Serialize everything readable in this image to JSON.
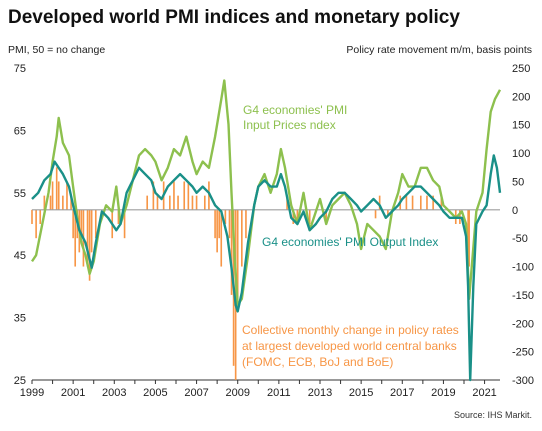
{
  "chart_data": {
    "type": "line",
    "title": "Developed world PMI indices and monetary policy",
    "ylabel_left": "PMI, 50 = no change",
    "ylabel_right": "Policy rate movement m/m, basis points",
    "source": "Source: IHS Markit.",
    "ylim_left": [
      25,
      75
    ],
    "ylim_right": [
      -300,
      250
    ],
    "yticks_left": [
      "75",
      "65",
      "55",
      "45",
      "35",
      "25"
    ],
    "yticks_right": [
      "250",
      "200",
      "150",
      "100",
      "50",
      "0",
      "-50",
      "-100",
      "-150",
      "-200",
      "-250",
      "-300"
    ],
    "xticks": [
      "1999",
      "2001",
      "2003",
      "2005",
      "2007",
      "2009",
      "2011",
      "2013",
      "2015",
      "2017",
      "2019",
      "2021"
    ],
    "x_range": [
      1999.0,
      2021.75
    ],
    "grid": false,
    "colors": {
      "input_prices": "#8dc04e",
      "output": "#1a9088",
      "policy": "#f79646",
      "zero_line": "#9e9e9e"
    },
    "annotations": {
      "input_prices": [
        "G4 economies' PMI",
        "Input  Prices ndex"
      ],
      "output": [
        "G4 economies' PMI Output  Index"
      ],
      "policy": [
        "Collective monthly change in policy rates",
        "at largest developed world central banks",
        "(FOMC, ECB, BoJ and BoE)"
      ]
    },
    "series": [
      {
        "name": "G4 economies' PMI Input  Prices ndex",
        "axis": "left",
        "points": [
          [
            1999.0,
            44
          ],
          [
            1999.2,
            45
          ],
          [
            1999.5,
            50
          ],
          [
            1999.8,
            55
          ],
          [
            2000.0,
            60
          ],
          [
            2000.2,
            64
          ],
          [
            2000.3,
            67
          ],
          [
            2000.5,
            63
          ],
          [
            2000.8,
            61
          ],
          [
            2001.0,
            56
          ],
          [
            2001.2,
            51
          ],
          [
            2001.4,
            47
          ],
          [
            2001.6,
            45
          ],
          [
            2001.8,
            42
          ],
          [
            2002.0,
            44
          ],
          [
            2002.3,
            50
          ],
          [
            2002.6,
            53
          ],
          [
            2002.9,
            52
          ],
          [
            2003.1,
            56
          ],
          [
            2003.3,
            50
          ],
          [
            2003.6,
            53
          ],
          [
            2003.9,
            57
          ],
          [
            2004.2,
            61
          ],
          [
            2004.5,
            62
          ],
          [
            2004.8,
            61
          ],
          [
            2005.0,
            60
          ],
          [
            2005.3,
            57
          ],
          [
            2005.6,
            59
          ],
          [
            2005.9,
            62
          ],
          [
            2006.2,
            61
          ],
          [
            2006.5,
            64
          ],
          [
            2006.8,
            60
          ],
          [
            2007.0,
            58
          ],
          [
            2007.3,
            60
          ],
          [
            2007.6,
            59
          ],
          [
            2007.9,
            64
          ],
          [
            2008.2,
            70
          ],
          [
            2008.35,
            73
          ],
          [
            2008.55,
            66
          ],
          [
            2008.7,
            55
          ],
          [
            2008.85,
            45
          ],
          [
            2009.0,
            37
          ],
          [
            2009.2,
            38
          ],
          [
            2009.5,
            45
          ],
          [
            2009.8,
            53
          ],
          [
            2010.0,
            56
          ],
          [
            2010.3,
            58
          ],
          [
            2010.6,
            55
          ],
          [
            2010.9,
            58
          ],
          [
            2011.1,
            62
          ],
          [
            2011.3,
            59
          ],
          [
            2011.6,
            53
          ],
          [
            2011.9,
            50
          ],
          [
            2012.2,
            55
          ],
          [
            2012.5,
            49
          ],
          [
            2012.8,
            52
          ],
          [
            2013.0,
            54
          ],
          [
            2013.3,
            50
          ],
          [
            2013.6,
            53
          ],
          [
            2013.9,
            54
          ],
          [
            2014.2,
            55
          ],
          [
            2014.5,
            53
          ],
          [
            2014.8,
            50
          ],
          [
            2015.0,
            46
          ],
          [
            2015.3,
            50
          ],
          [
            2015.6,
            49
          ],
          [
            2015.9,
            48
          ],
          [
            2016.2,
            46
          ],
          [
            2016.5,
            52
          ],
          [
            2016.8,
            55
          ],
          [
            2017.0,
            58
          ],
          [
            2017.3,
            56
          ],
          [
            2017.6,
            56
          ],
          [
            2017.9,
            59
          ],
          [
            2018.2,
            59
          ],
          [
            2018.5,
            57
          ],
          [
            2018.8,
            56
          ],
          [
            2019.0,
            53
          ],
          [
            2019.3,
            52
          ],
          [
            2019.6,
            51
          ],
          [
            2019.9,
            52
          ],
          [
            2020.1,
            50
          ],
          [
            2020.25,
            38
          ],
          [
            2020.4,
            44
          ],
          [
            2020.6,
            52
          ],
          [
            2020.9,
            55
          ],
          [
            2021.1,
            62
          ],
          [
            2021.3,
            68
          ],
          [
            2021.5,
            70
          ],
          [
            2021.75,
            71.5
          ]
        ]
      },
      {
        "name": "G4 economies' PMI Output  Index",
        "axis": "left",
        "points": [
          [
            1999.0,
            54
          ],
          [
            1999.3,
            55
          ],
          [
            1999.6,
            57
          ],
          [
            1999.9,
            58
          ],
          [
            2000.1,
            60
          ],
          [
            2000.3,
            59
          ],
          [
            2000.5,
            58
          ],
          [
            2000.8,
            56
          ],
          [
            2001.0,
            53
          ],
          [
            2001.3,
            49
          ],
          [
            2001.6,
            47
          ],
          [
            2001.9,
            43
          ],
          [
            2002.1,
            47
          ],
          [
            2002.4,
            52
          ],
          [
            2002.7,
            51
          ],
          [
            2002.9,
            50
          ],
          [
            2003.1,
            49
          ],
          [
            2003.3,
            50
          ],
          [
            2003.6,
            55
          ],
          [
            2003.9,
            57
          ],
          [
            2004.2,
            59
          ],
          [
            2004.5,
            58
          ],
          [
            2004.8,
            57
          ],
          [
            2005.0,
            55
          ],
          [
            2005.3,
            54
          ],
          [
            2005.6,
            56
          ],
          [
            2005.9,
            57
          ],
          [
            2006.2,
            58
          ],
          [
            2006.5,
            57
          ],
          [
            2006.8,
            56
          ],
          [
            2007.0,
            55
          ],
          [
            2007.3,
            56
          ],
          [
            2007.6,
            55
          ],
          [
            2007.9,
            53
          ],
          [
            2008.2,
            52
          ],
          [
            2008.5,
            48
          ],
          [
            2008.7,
            43
          ],
          [
            2008.9,
            37
          ],
          [
            2009.0,
            36
          ],
          [
            2009.2,
            39
          ],
          [
            2009.5,
            47
          ],
          [
            2009.8,
            53
          ],
          [
            2010.0,
            56
          ],
          [
            2010.3,
            57
          ],
          [
            2010.6,
            56
          ],
          [
            2010.9,
            56
          ],
          [
            2011.1,
            58
          ],
          [
            2011.3,
            56
          ],
          [
            2011.6,
            51
          ],
          [
            2011.9,
            50
          ],
          [
            2012.2,
            52
          ],
          [
            2012.5,
            49
          ],
          [
            2012.8,
            50
          ],
          [
            2013.0,
            51
          ],
          [
            2013.3,
            52
          ],
          [
            2013.6,
            54
          ],
          [
            2013.9,
            55
          ],
          [
            2014.2,
            55
          ],
          [
            2014.5,
            54
          ],
          [
            2014.8,
            53
          ],
          [
            2015.0,
            52
          ],
          [
            2015.3,
            53
          ],
          [
            2015.6,
            54
          ],
          [
            2015.9,
            53
          ],
          [
            2016.2,
            51
          ],
          [
            2016.5,
            52
          ],
          [
            2016.8,
            53
          ],
          [
            2017.0,
            54
          ],
          [
            2017.3,
            55
          ],
          [
            2017.6,
            56
          ],
          [
            2017.9,
            56
          ],
          [
            2018.2,
            55
          ],
          [
            2018.5,
            54
          ],
          [
            2018.8,
            53
          ],
          [
            2019.0,
            52
          ],
          [
            2019.3,
            51
          ],
          [
            2019.6,
            51
          ],
          [
            2019.9,
            51
          ],
          [
            2020.1,
            48
          ],
          [
            2020.2,
            40
          ],
          [
            2020.3,
            25
          ],
          [
            2020.45,
            40
          ],
          [
            2020.6,
            50
          ],
          [
            2020.9,
            52
          ],
          [
            2021.1,
            53
          ],
          [
            2021.3,
            58
          ],
          [
            2021.45,
            61
          ],
          [
            2021.6,
            59
          ],
          [
            2021.75,
            55
          ]
        ]
      },
      {
        "name": "Collective monthly change in policy rates",
        "axis": "right",
        "type": "bar",
        "points": [
          [
            1999.0,
            -25
          ],
          [
            1999.2,
            -50
          ],
          [
            1999.4,
            -25
          ],
          [
            1999.6,
            25
          ],
          [
            1999.9,
            25
          ],
          [
            2000.0,
            50
          ],
          [
            2000.2,
            75
          ],
          [
            2000.3,
            50
          ],
          [
            2000.5,
            25
          ],
          [
            2000.7,
            50
          ],
          [
            2000.9,
            25
          ],
          [
            2001.0,
            -50
          ],
          [
            2001.1,
            -100
          ],
          [
            2001.2,
            -50
          ],
          [
            2001.3,
            -75
          ],
          [
            2001.4,
            -50
          ],
          [
            2001.5,
            -100
          ],
          [
            2001.7,
            -100
          ],
          [
            2001.8,
            -125
          ],
          [
            2001.9,
            -75
          ],
          [
            2002.1,
            -50
          ],
          [
            2002.9,
            -50
          ],
          [
            2003.2,
            -25
          ],
          [
            2003.5,
            -50
          ],
          [
            2004.6,
            25
          ],
          [
            2004.9,
            50
          ],
          [
            2005.1,
            25
          ],
          [
            2005.4,
            50
          ],
          [
            2005.7,
            25
          ],
          [
            2005.9,
            50
          ],
          [
            2006.1,
            25
          ],
          [
            2006.4,
            50
          ],
          [
            2006.6,
            50
          ],
          [
            2006.8,
            25
          ],
          [
            2007.0,
            25
          ],
          [
            2007.4,
            25
          ],
          [
            2007.6,
            50
          ],
          [
            2007.9,
            -50
          ],
          [
            2008.0,
            -75
          ],
          [
            2008.1,
            -50
          ],
          [
            2008.2,
            -100
          ],
          [
            2008.4,
            -25
          ],
          [
            2008.6,
            -50
          ],
          [
            2008.7,
            -150
          ],
          [
            2008.8,
            -275
          ],
          [
            2008.9,
            -300
          ],
          [
            2009.0,
            -175
          ],
          [
            2009.2,
            -100
          ],
          [
            2009.4,
            -50
          ],
          [
            2011.4,
            25
          ],
          [
            2011.7,
            -25
          ],
          [
            2011.9,
            -25
          ],
          [
            2012.5,
            -25
          ],
          [
            2013.3,
            -25
          ],
          [
            2015.7,
            -15
          ],
          [
            2015.9,
            25
          ],
          [
            2016.3,
            -10
          ],
          [
            2016.9,
            25
          ],
          [
            2017.2,
            25
          ],
          [
            2017.5,
            25
          ],
          [
            2017.9,
            25
          ],
          [
            2018.2,
            25
          ],
          [
            2018.5,
            25
          ],
          [
            2018.9,
            25
          ],
          [
            2019.6,
            -25
          ],
          [
            2019.8,
            -25
          ],
          [
            2020.2,
            -150
          ],
          [
            2020.25,
            -100
          ]
        ]
      }
    ]
  }
}
